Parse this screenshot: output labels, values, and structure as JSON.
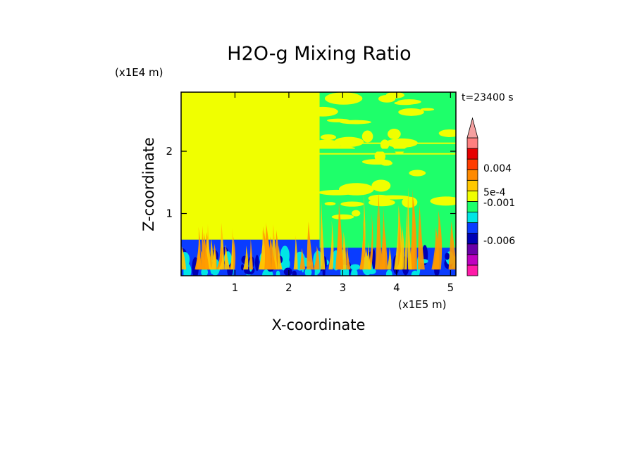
{
  "chart_data": {
    "type": "heatmap",
    "title": "H2O-g Mixing Ratio",
    "xlabel": "X-coordinate",
    "ylabel": "Z-coordinate",
    "x_unit": "(x1E5 m)",
    "y_unit": "(x1E4 m)",
    "time_label": "t=23400 s",
    "xlim": [
      0,
      5.1
    ],
    "ylim": [
      0,
      2.95
    ],
    "x_ticks": [
      "1",
      "2",
      "3",
      "4",
      "5"
    ],
    "y_ticks": [
      "1",
      "2"
    ],
    "colorbar": {
      "colors": [
        "#ff1aa8",
        "#c000c0",
        "#6a00a8",
        "#0000b4",
        "#0a3cff",
        "#00e5e5",
        "#1eff6a",
        "#f0ff00",
        "#ffc800",
        "#ff8a00",
        "#ff3c00",
        "#e60000",
        "#ff8080",
        "#f5a0a0"
      ],
      "labels": [
        "-0.006",
        "-0.001",
        "5e-4",
        "0.004"
      ],
      "extend": "max"
    },
    "colors": {
      "moist_region": "#f0ff00",
      "dry_region": "#1eff6a",
      "boundary_layer": "#0a3cff",
      "deep_layer": "#0000b4",
      "cyan_layer": "#00e5e5",
      "plume_orange": "#ff9a00",
      "plume_yellow": "#ffc800"
    }
  }
}
